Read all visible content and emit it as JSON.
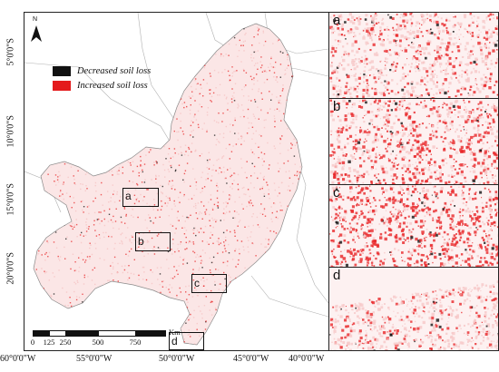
{
  "map": {
    "north_label": "N",
    "lat_ticks": [
      "5°0'0\"S",
      "10°0'0\"S",
      "15°0'0\"S",
      "20°0'0\"S"
    ],
    "lon_ticks": [
      "60°0'0\"W",
      "55°0'0\"W",
      "50°0'0\"W",
      "45°0'0\"W",
      "40°0'0\"W"
    ],
    "legend": [
      {
        "label": "Decreased soil loss",
        "color": "#111111"
      },
      {
        "label": "Increased soil loss",
        "color": "#e41a1c"
      }
    ],
    "scale_labels": [
      "0",
      "125",
      "250",
      "500",
      "750"
    ],
    "scale_unit": "Km",
    "inset_boxes": [
      {
        "label": "a"
      },
      {
        "label": "b"
      },
      {
        "label": "c"
      },
      {
        "label": "d"
      }
    ]
  },
  "panels": [
    {
      "label": "a"
    },
    {
      "label": "b"
    },
    {
      "label": "c"
    },
    {
      "label": "d"
    }
  ],
  "colors": {
    "increase": "#e8282a",
    "decrease": "#111111",
    "pale": "#f6c8c8",
    "boundary": "#9a9a9a"
  }
}
